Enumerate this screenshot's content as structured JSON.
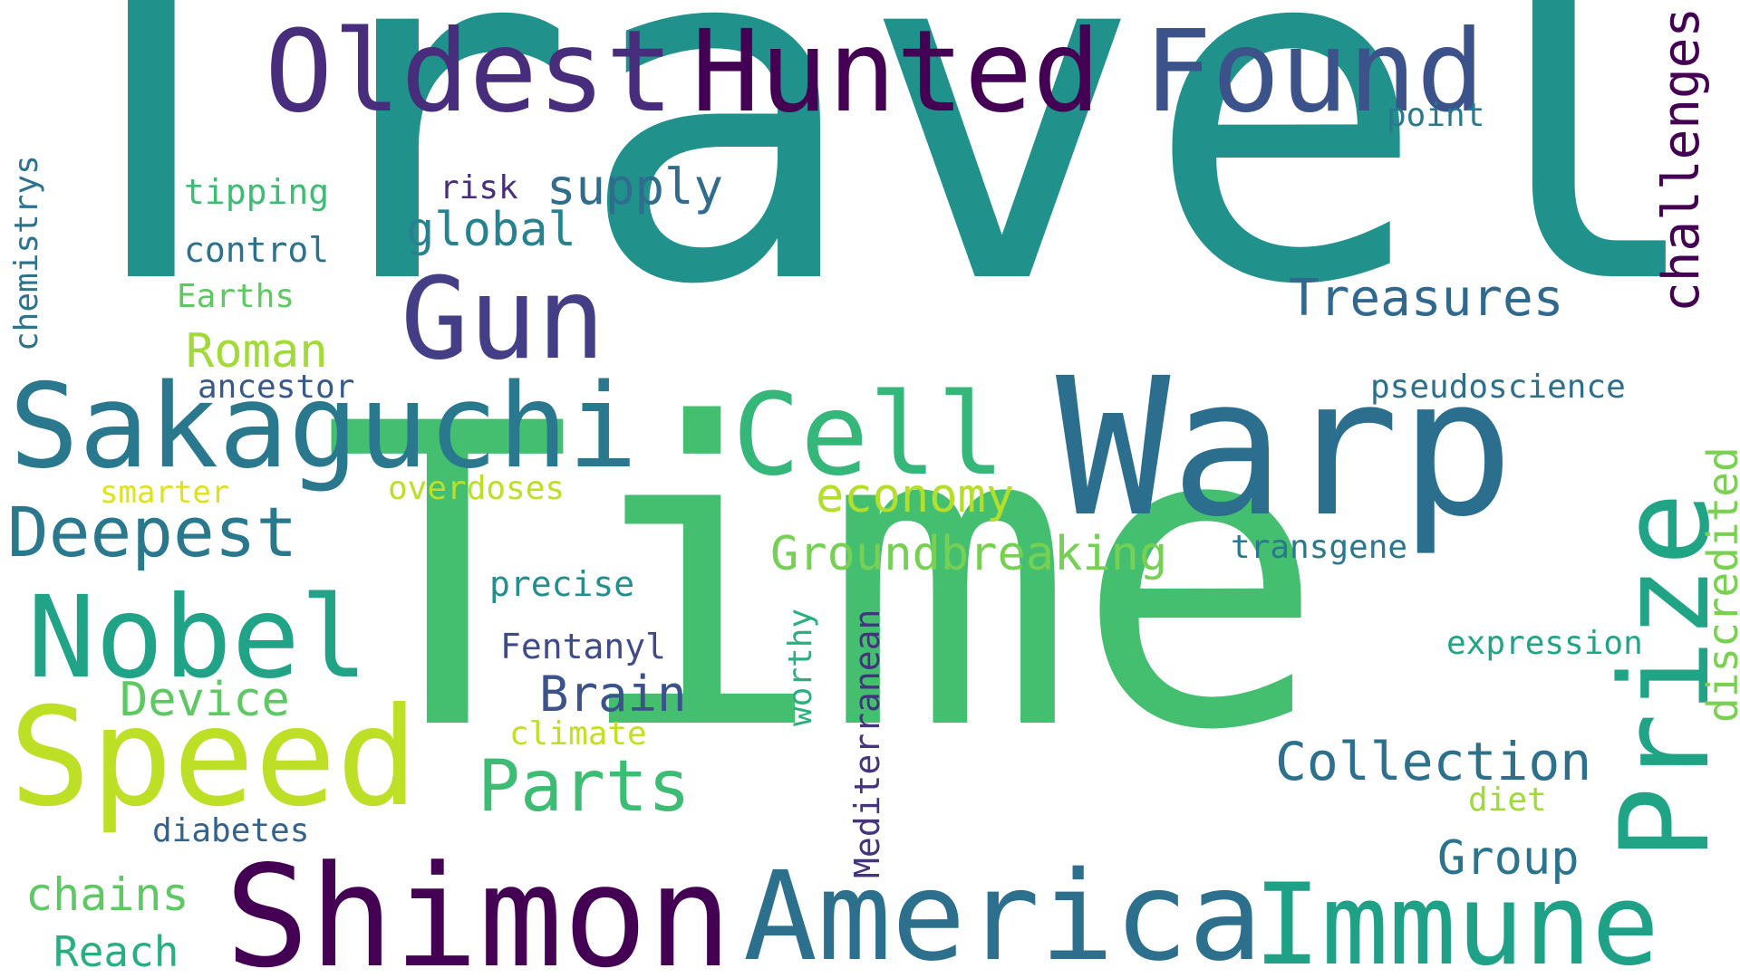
{
  "words": [
    {
      "id": "travel",
      "text": "Travel",
      "color": "#21918c"
    },
    {
      "id": "time",
      "text": "Time",
      "color": "#44bf70"
    },
    {
      "id": "shimon",
      "text": "Shimon",
      "color": "#440154"
    },
    {
      "id": "america",
      "text": "America",
      "color": "#2d708e"
    },
    {
      "id": "immune",
      "text": "Immune",
      "color": "#1fa187"
    },
    {
      "id": "warp",
      "text": "Warp",
      "color": "#2c6e8e"
    },
    {
      "id": "speed",
      "text": "Speed",
      "color": "#bddf26"
    },
    {
      "id": "sakaguchi",
      "text": "Sakaguchi",
      "color": "#2a788e"
    },
    {
      "id": "nobel",
      "text": "Nobel",
      "color": "#20a386"
    },
    {
      "id": "oldest",
      "text": "Oldest",
      "color": "#472d7b"
    },
    {
      "id": "hunted",
      "text": "Hunted",
      "color": "#440154"
    },
    {
      "id": "found",
      "text": "Found",
      "color": "#3b528b"
    },
    {
      "id": "gun",
      "text": "Gun",
      "color": "#433e85"
    },
    {
      "id": "cell",
      "text": "Cell",
      "color": "#35b779"
    },
    {
      "id": "prize",
      "text": "Prize",
      "color": "#20a486"
    },
    {
      "id": "deepest",
      "text": "Deepest",
      "color": "#2a788e"
    },
    {
      "id": "parts",
      "text": "Parts",
      "color": "#3dbc74"
    },
    {
      "id": "collection",
      "text": "Collection",
      "color": "#2d708e"
    },
    {
      "id": "treasures",
      "text": "Treasures",
      "color": "#31688e"
    },
    {
      "id": "challenges",
      "text": "challenges",
      "color": "#440154"
    },
    {
      "id": "groundbreaking",
      "text": "Groundbreaking",
      "color": "#75d054"
    },
    {
      "id": "economy",
      "text": "economy",
      "color": "#b5de2b"
    },
    {
      "id": "brain",
      "text": "Brain",
      "color": "#3b528b"
    },
    {
      "id": "group",
      "text": "Group",
      "color": "#2c738e"
    },
    {
      "id": "discredited",
      "text": "discredited",
      "color": "#7ad151"
    },
    {
      "id": "supply",
      "text": "supply",
      "color": "#2f6c8e"
    },
    {
      "id": "global",
      "text": "global",
      "color": "#26828e"
    },
    {
      "id": "roman",
      "text": "Roman",
      "color": "#a2da37"
    },
    {
      "id": "device",
      "text": "Device",
      "color": "#5ec962"
    },
    {
      "id": "chains",
      "text": "chains",
      "color": "#5ec962"
    },
    {
      "id": "reach",
      "text": "Reach",
      "color": "#29af7f"
    },
    {
      "id": "mediterranean",
      "text": "Mediterranean",
      "color": "#46337f"
    },
    {
      "id": "pseudoscience",
      "text": "pseudoscience",
      "color": "#2e6f8e"
    },
    {
      "id": "expression",
      "text": "expression",
      "color": "#20a486"
    },
    {
      "id": "transgene",
      "text": "transgene",
      "color": "#2a788e"
    },
    {
      "id": "fentanyl",
      "text": "Fentanyl",
      "color": "#3e4a89"
    },
    {
      "id": "precise",
      "text": "precise",
      "color": "#218f8d"
    },
    {
      "id": "control",
      "text": "control",
      "color": "#2c728e"
    },
    {
      "id": "tipping",
      "text": "tipping",
      "color": "#3dbc74"
    },
    {
      "id": "earths",
      "text": "Earths",
      "color": "#5ec962"
    },
    {
      "id": "ancestor",
      "text": "ancestor",
      "color": "#38598c"
    },
    {
      "id": "risk",
      "text": "risk",
      "color": "#472f7d"
    },
    {
      "id": "point",
      "text": "point",
      "color": "#2a788e"
    },
    {
      "id": "chemistrys",
      "text": "chemistrys",
      "color": "#2c738e"
    },
    {
      "id": "worthy",
      "text": "worthy",
      "color": "#2ab07f"
    },
    {
      "id": "diabetes",
      "text": "diabetes",
      "color": "#33638d"
    },
    {
      "id": "climate",
      "text": "climate",
      "color": "#c2df23"
    },
    {
      "id": "smarter",
      "text": "smarter",
      "color": "#dde318"
    },
    {
      "id": "overdoses",
      "text": "overdoses",
      "color": "#bddf26"
    },
    {
      "id": "diet",
      "text": "diet",
      "color": "#a0da39"
    }
  ]
}
